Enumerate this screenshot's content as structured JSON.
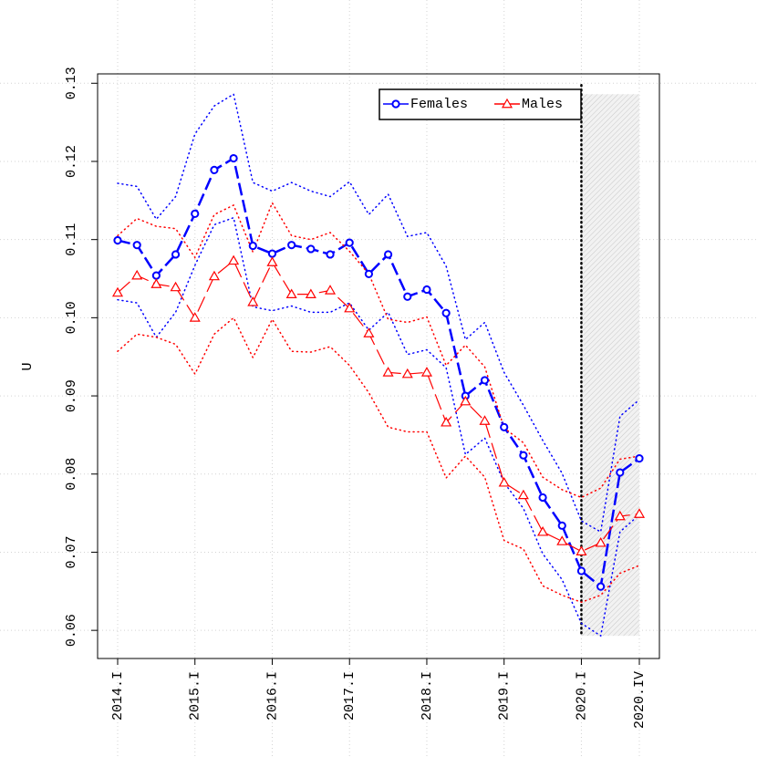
{
  "chart_data": {
    "type": "line",
    "ylabel": "U",
    "categories": [
      "2014.I",
      null,
      null,
      null,
      "2015.I",
      null,
      null,
      null,
      "2016.I",
      null,
      null,
      null,
      "2017.I",
      null,
      null,
      null,
      "2018.I",
      null,
      null,
      null,
      "2019.I",
      null,
      null,
      null,
      "2020.I",
      null,
      null,
      "2020.IV"
    ],
    "ylim": [
      0.0564,
      0.1312
    ],
    "yticks": [
      0.06,
      0.07,
      0.08,
      0.09,
      {
        "value": 0.1,
        "label": "0.10"
      },
      0.11,
      0.12,
      0.13
    ],
    "grid": true,
    "legend": "top",
    "highlight_from": "2020.I",
    "highlight_to": "2020.IV",
    "series": [
      {
        "name": "Females",
        "color": "#0000ff",
        "marker": "circle",
        "values": [
          0.1099,
          0.1093,
          0.1054,
          0.1081,
          0.1133,
          0.1189,
          0.1204,
          0.1092,
          0.1082,
          0.1093,
          0.1088,
          0.1081,
          0.1096,
          0.1056,
          0.1081,
          0.1027,
          0.1036,
          0.1006,
          0.09,
          0.092,
          0.086,
          0.0824,
          0.077,
          0.0734,
          0.0676,
          0.0656,
          0.0802,
          0.082
        ],
        "upper": [
          0.1172,
          0.1168,
          0.1126,
          0.1155,
          0.1235,
          0.1271,
          0.1286,
          0.1173,
          0.1162,
          0.1173,
          0.1162,
          0.1155,
          0.1174,
          0.1132,
          0.1158,
          0.1104,
          0.1109,
          0.1066,
          0.0972,
          0.0994,
          0.093,
          0.0888,
          0.0843,
          0.0801,
          0.074,
          0.0726,
          0.0874,
          0.0895
        ],
        "lower": [
          0.1023,
          0.1019,
          0.0975,
          0.1007,
          0.1067,
          0.1119,
          0.1128,
          0.1014,
          0.1009,
          0.1015,
          0.1007,
          0.1007,
          0.1019,
          0.0984,
          0.1007,
          0.0953,
          0.0959,
          0.0936,
          0.0825,
          0.0846,
          0.0789,
          0.0756,
          0.0698,
          0.0665,
          0.0609,
          0.0593,
          0.0726,
          0.0748
        ]
      },
      {
        "name": "Males",
        "color": "#ff0000",
        "marker": "triangle",
        "values": [
          0.1032,
          0.1054,
          0.1043,
          0.1039,
          0.1,
          0.1053,
          0.1073,
          0.102,
          0.1071,
          0.103,
          0.103,
          0.1035,
          0.1012,
          0.098,
          0.093,
          0.0928,
          0.093,
          0.0866,
          0.0893,
          0.0868,
          0.0789,
          0.0773,
          0.0726,
          0.0714,
          0.0701,
          0.0712,
          0.0746,
          0.0749
        ],
        "upper": [
          0.1105,
          0.1127,
          0.1117,
          0.1114,
          0.1077,
          0.1132,
          0.1144,
          0.1084,
          0.1147,
          0.1105,
          0.11,
          0.1109,
          0.1085,
          0.1056,
          0.0998,
          0.0994,
          0.1001,
          0.0939,
          0.0965,
          0.0937,
          0.0859,
          0.084,
          0.0796,
          0.078,
          0.077,
          0.0782,
          0.0819,
          0.0823
        ],
        "lower": [
          0.0957,
          0.0979,
          0.0975,
          0.0966,
          0.0928,
          0.0979,
          0.1,
          0.0949,
          0.0998,
          0.0957,
          0.0956,
          0.0963,
          0.0939,
          0.0904,
          0.086,
          0.0854,
          0.0854,
          0.0795,
          0.0823,
          0.0796,
          0.0715,
          0.0704,
          0.0657,
          0.0645,
          0.0636,
          0.0645,
          0.0673,
          0.0683
        ]
      }
    ]
  }
}
